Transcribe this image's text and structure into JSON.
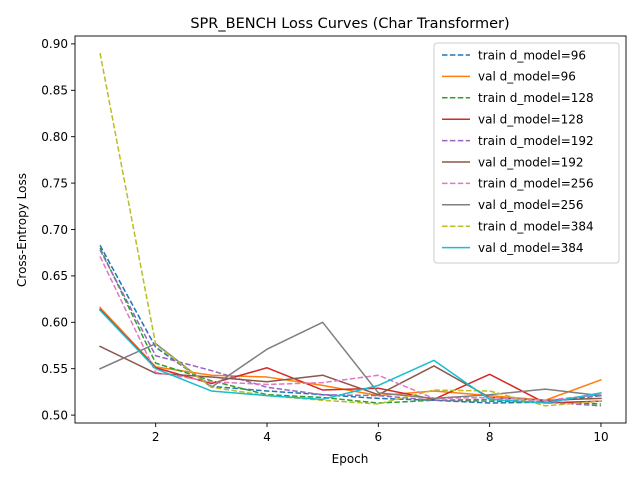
{
  "chart_data": {
    "type": "line",
    "title": "SPR_BENCH Loss Curves (Char Transformer)",
    "xlabel": "Epoch",
    "ylabel": "Cross-Entropy Loss",
    "xlim": [
      0.55,
      10.45
    ],
    "ylim": [
      0.4915,
      0.9085
    ],
    "xticks": [
      2,
      4,
      6,
      8,
      10
    ],
    "yticks": [
      0.5,
      0.55,
      0.6,
      0.65,
      0.7,
      0.75,
      0.8,
      0.85,
      0.9
    ],
    "ytick_labels": [
      "0.50",
      "0.55",
      "0.60",
      "0.65",
      "0.70",
      "0.75",
      "0.80",
      "0.85",
      "0.90"
    ],
    "grid": false,
    "legend_position": "top-right",
    "x": [
      1,
      2,
      3,
      4,
      5,
      6,
      7,
      8,
      9,
      10
    ],
    "series": [
      {
        "name": "train d_model=96",
        "style": "dashed",
        "color": "#1f77b4",
        "values": [
          0.683,
          0.573,
          0.531,
          0.526,
          0.522,
          0.518,
          0.516,
          0.513,
          0.514,
          0.521
        ]
      },
      {
        "name": "val d_model=96",
        "style": "solid",
        "color": "#ff7f0e",
        "values": [
          0.616,
          0.552,
          0.543,
          0.541,
          0.532,
          0.521,
          0.526,
          0.521,
          0.516,
          0.538
        ]
      },
      {
        "name": "train d_model=128",
        "style": "dashed",
        "color": "#2ca02c",
        "values": [
          0.68,
          0.556,
          0.537,
          0.522,
          0.519,
          0.513,
          0.516,
          0.515,
          0.514,
          0.512
        ]
      },
      {
        "name": "val d_model=128",
        "style": "solid",
        "color": "#d62728",
        "values": [
          0.614,
          0.551,
          0.534,
          0.551,
          0.527,
          0.529,
          0.517,
          0.544,
          0.513,
          0.515
        ]
      },
      {
        "name": "train d_model=192",
        "style": "dashed",
        "color": "#9467bd",
        "values": [
          0.678,
          0.564,
          0.548,
          0.53,
          0.522,
          0.521,
          0.516,
          0.517,
          0.514,
          0.51
        ]
      },
      {
        "name": "val d_model=192",
        "style": "solid",
        "color": "#8c564b",
        "values": [
          0.574,
          0.545,
          0.541,
          0.536,
          0.543,
          0.522,
          0.553,
          0.519,
          0.516,
          0.518
        ]
      },
      {
        "name": "train d_model=256",
        "style": "dashed",
        "color": "#e377c2",
        "values": [
          0.671,
          0.546,
          0.536,
          0.533,
          0.535,
          0.543,
          0.518,
          0.519,
          0.516,
          0.522
        ]
      },
      {
        "name": "val d_model=256",
        "style": "solid",
        "color": "#7f7f7f",
        "values": [
          0.55,
          0.577,
          0.53,
          0.571,
          0.6,
          0.524,
          0.518,
          0.522,
          0.528,
          0.521
        ]
      },
      {
        "name": "train d_model=384",
        "style": "dashed",
        "color": "#bcbd22",
        "values": [
          0.89,
          0.576,
          0.53,
          0.521,
          0.516,
          0.512,
          0.527,
          0.526,
          0.51,
          0.515
        ]
      },
      {
        "name": "val d_model=384",
        "style": "solid",
        "color": "#17becf",
        "values": [
          0.613,
          0.55,
          0.526,
          0.521,
          0.517,
          0.532,
          0.559,
          0.517,
          0.513,
          0.524
        ]
      }
    ]
  }
}
